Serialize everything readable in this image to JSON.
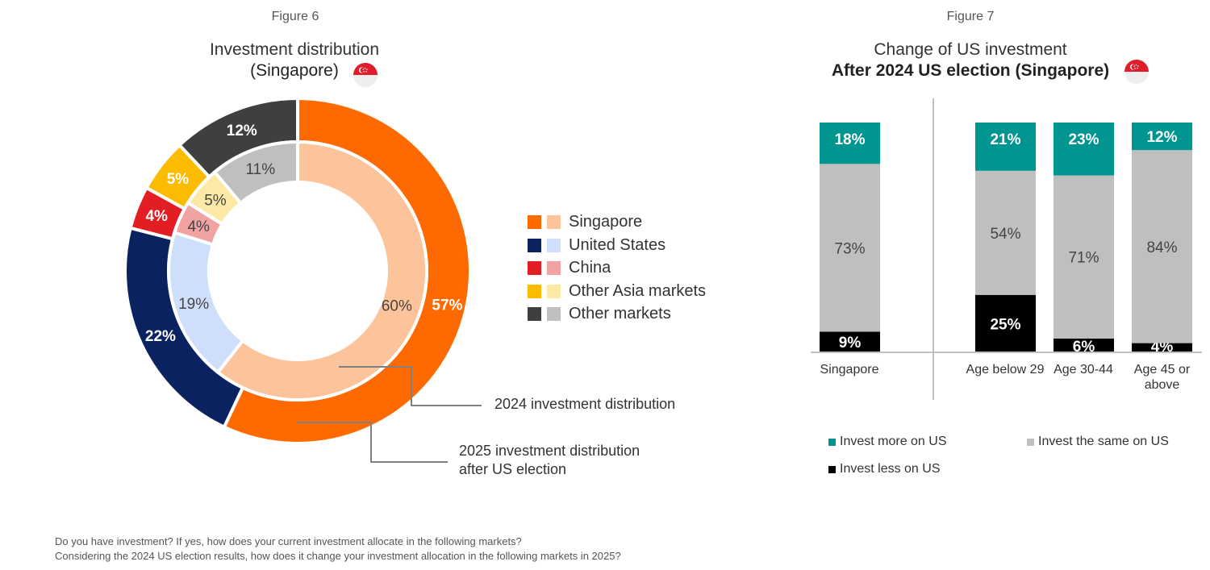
{
  "figure6": {
    "fig_label": "Figure 6",
    "title_line1": "Investment distribution",
    "title_line2": "(Singapore)",
    "annotation_inner": "2024 investment distribution",
    "annotation_outer_1": "2025 investment distribution",
    "annotation_outer_2": "after US election",
    "legend": [
      {
        "label": "Singapore",
        "dark": "#ff6a00",
        "light": "#fdc49b"
      },
      {
        "label": "United States",
        "dark": "#0b2260",
        "light": "#cfdffb"
      },
      {
        "label": "China",
        "dark": "#e21d24",
        "light": "#f0a3a2"
      },
      {
        "label": "Other Asia markets",
        "dark": "#fbbc00",
        "light": "#fde9a6"
      },
      {
        "label": "Other markets",
        "dark": "#3f3f3f",
        "light": "#bfbfbf"
      }
    ]
  },
  "figure7": {
    "fig_label": "Figure 7",
    "title_line1": "Change of US investment",
    "title_line2": "After 2024 US election (Singapore)",
    "legend": [
      {
        "label": "Invest more on US",
        "color": "#009591"
      },
      {
        "label": "Invest the same on US",
        "color": "#bfbfbf"
      },
      {
        "label": "Invest less on US",
        "color": "#000000"
      }
    ]
  },
  "footnote_line1": "Do you have investment? If yes, how does your current investment allocate in the following markets?",
  "footnote_line2": "Considering the 2024 US election results, how does it change your investment allocation in the following markets in 2025?",
  "chart_data": [
    {
      "type": "pie",
      "title": "Investment distribution (Singapore)",
      "rings": [
        {
          "name": "2024 investment distribution",
          "categories": [
            "Singapore",
            "United States",
            "China",
            "Other Asia markets",
            "Other markets"
          ],
          "values": [
            60,
            19,
            4,
            5,
            11
          ],
          "labels": [
            "60%",
            "19%",
            "4%",
            "5%",
            "11%"
          ]
        },
        {
          "name": "2025 investment distribution after US election",
          "categories": [
            "Singapore",
            "United States",
            "China",
            "Other Asia markets",
            "Other markets"
          ],
          "values": [
            57,
            22,
            4,
            5,
            12
          ],
          "labels": [
            "57%",
            "22%",
            "4%",
            "5%",
            "12%"
          ]
        }
      ]
    },
    {
      "type": "bar",
      "stacked": true,
      "title": "Change of US investment After 2024 US election (Singapore)",
      "categories": [
        "Singapore",
        "Age below 29",
        "Age 30-44",
        "Age 45 or above"
      ],
      "series": [
        {
          "name": "Invest less on US",
          "values": [
            9,
            25,
            6,
            4
          ],
          "labels": [
            "9%",
            "25%",
            "6%",
            "4%"
          ]
        },
        {
          "name": "Invest the same on US",
          "values": [
            73,
            54,
            71,
            84
          ],
          "labels": [
            "73%",
            "54%",
            "71%",
            "84%"
          ]
        },
        {
          "name": "Invest more on US",
          "values": [
            18,
            21,
            23,
            12
          ],
          "labels": [
            "18%",
            "21%",
            "23%",
            "12%"
          ]
        }
      ],
      "ylim": [
        0,
        100
      ]
    }
  ]
}
